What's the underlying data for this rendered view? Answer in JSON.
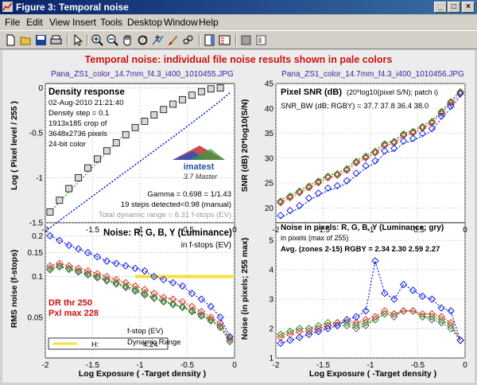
{
  "window": {
    "title": "Figure 3: Temporal noise"
  },
  "menu": [
    "File",
    "Edit",
    "View",
    "Insert",
    "Tools",
    "Desktop",
    "Window",
    "Help"
  ],
  "toolbar_icons": [
    "new-file-icon",
    "open-file-icon",
    "save-icon",
    "print-icon",
    "select-arrow-icon",
    "zoom-in-icon",
    "zoom-out-icon",
    "pan-hand-icon",
    "rotate-3d-icon",
    "data-cursor-icon",
    "brush-icon",
    "link-icon",
    "colorbar-icon",
    "legend-icon",
    "hide-plot-tools-icon",
    "show-plot-tools-icon"
  ],
  "figure": {
    "suptitle": "Temporal noise:  individual file noise results shown in pale colors",
    "left_filename": "Pana_ZS1_color_14.7mm_f4.3_i400_1010455.JPG",
    "right_filename": "Pana_ZS1_color_14.7mm_f4.3_i400_1010456.JPG",
    "xlabel": "Log Exposure ( -Target density )",
    "colors": {
      "R": "#e03030",
      "G": "#20a020",
      "B": "#1020e0",
      "Y": "#606060"
    }
  },
  "panel_tl": {
    "title": "Density response",
    "info": [
      "02-Aug-2010 21:21:40",
      "Density step = 0.1",
      "1913x185 crop of",
      "3648x2736 pixels",
      "24-bit color"
    ],
    "logo_text": "imatest",
    "logo_sub": "3.7  Master",
    "gamma": "Gamma = 0.698 = 1/1.43",
    "steps": "19 steps detected<0.98 (manual)",
    "dynrange": "Total dynamic range = 6.31 f-stops (EV)",
    "ylabel": "Log ( Pixel level / 255 )",
    "yticks": [
      "-1.5",
      "-1",
      "-0.5",
      "0"
    ],
    "xticks": [
      "-2",
      "-1.5",
      "-1",
      "-0.5",
      "0"
    ]
  },
  "panel_tr": {
    "title": "Pixel SNR (dB)",
    "title_note": "(20*log10(pixel S/N); patch i)",
    "snr_bw": "SNR_BW (dB; RGBY) = 37.7 37.8 36.4 38.0",
    "ylabel": "SNR (dB) 20*log10(S/N)",
    "yticks": [
      "20",
      "25",
      "30",
      "35",
      "40",
      "45"
    ],
    "xticks": [
      "-2",
      "-1.5",
      "-1",
      "-0.5",
      "0"
    ]
  },
  "panel_bl": {
    "title": "Noise: R, G, B, Y (Luminance)",
    "subtitle": "in f-stops (EV)",
    "dr_thr": "DR thr 250",
    "pxl_max": "Pxl max 228",
    "ylabel": "RMS noise (f-stops)",
    "legend_h": "H:",
    "legend_val": "4.24",
    "legend_fstop": "f-stop (EV)",
    "legend_dr": "Dynamic Range",
    "yticks": [
      "0.2",
      "0.15",
      "0.1",
      "0.05"
    ],
    "xticks": [
      "-2",
      "-1.5",
      "-1",
      "-0.5",
      "0"
    ]
  },
  "panel_br": {
    "title": "Noise in pixels: R, G, B, Y (Luminance; gry)",
    "subtitle": "in pixels (max of 255)",
    "avg": "Avg. (zones 2-15) RGBY = 2.34  2.30  2.59  2.27",
    "ylabel": "Noise (in pixels; 255 max)",
    "yticks": [
      "1",
      "2",
      "3",
      "4",
      "5"
    ],
    "xticks": [
      "-2",
      "-1.5",
      "-1",
      "-0.5",
      "0"
    ]
  },
  "chart_data": [
    {
      "type": "scatter",
      "title": "Density response",
      "xlabel": "Log Exposure ( -Target density )",
      "ylabel": "Log ( Pixel level / 255 )",
      "xlim": [
        -2,
        0
      ],
      "ylim": [
        -1.5,
        0.05
      ],
      "series": [
        {
          "name": "Y",
          "x": [
            -1.95,
            -1.85,
            -1.75,
            -1.65,
            -1.55,
            -1.45,
            -1.35,
            -1.25,
            -1.15,
            -1.05,
            -0.95,
            -0.85,
            -0.75,
            -0.65,
            -0.55,
            -0.45,
            -0.35,
            -0.25,
            -0.15
          ],
          "values": [
            -1.38,
            -1.25,
            -1.12,
            -1.0,
            -0.89,
            -0.79,
            -0.7,
            -0.61,
            -0.52,
            -0.44,
            -0.37,
            -0.3,
            -0.24,
            -0.18,
            -0.13,
            -0.08,
            -0.04,
            -0.01,
            0.0
          ]
        }
      ]
    },
    {
      "type": "line",
      "title": "Pixel SNR (dB)",
      "xlabel": "Log Exposure ( -Target density )",
      "ylabel": "SNR (dB) 20*log10(S/N)",
      "xlim": [
        -2,
        0
      ],
      "ylim": [
        17,
        45
      ],
      "x": [
        -1.95,
        -1.85,
        -1.75,
        -1.65,
        -1.55,
        -1.45,
        -1.35,
        -1.25,
        -1.15,
        -1.05,
        -0.95,
        -0.85,
        -0.75,
        -0.65,
        -0.55,
        -0.45,
        -0.35,
        -0.25,
        -0.15,
        -0.05
      ],
      "series": [
        {
          "name": "R",
          "values": [
            21,
            22,
            23,
            24,
            25,
            26,
            26.5,
            27.5,
            29,
            30,
            31,
            32.5,
            33,
            34.5,
            35,
            36,
            37,
            39,
            41,
            43
          ]
        },
        {
          "name": "G",
          "values": [
            21.5,
            22.5,
            23.5,
            24.5,
            25.5,
            26.5,
            27,
            28,
            29.5,
            30.5,
            31.5,
            33,
            33.5,
            35,
            35.5,
            36.5,
            37.5,
            39.5,
            41.5,
            43.5
          ]
        },
        {
          "name": "B",
          "values": [
            18,
            19,
            20,
            21.5,
            22.5,
            23.5,
            24,
            25,
            26.5,
            28,
            29,
            31,
            31.5,
            33,
            33.5,
            34.5,
            35.5,
            38,
            40,
            42.5
          ]
        },
        {
          "name": "Y",
          "values": [
            21.5,
            22.5,
            23.5,
            24.5,
            25.5,
            26.5,
            27,
            28,
            29.5,
            30.5,
            31.5,
            33,
            33.5,
            35,
            35.5,
            36.5,
            37.5,
            39.5,
            41.5,
            43.5
          ]
        }
      ]
    },
    {
      "type": "line",
      "title": "Noise: R, G, B, Y (Luminance)",
      "xlabel": "Log Exposure ( -Target density )",
      "ylabel": "RMS noise (f-stops)",
      "xlim": [
        -2,
        0
      ],
      "ylog": true,
      "ylim": [
        0.025,
        0.25
      ],
      "x": [
        -1.95,
        -1.85,
        -1.75,
        -1.65,
        -1.55,
        -1.45,
        -1.35,
        -1.25,
        -1.15,
        -1.05,
        -0.95,
        -0.85,
        -0.75,
        -0.65,
        -0.55,
        -0.45,
        -0.35,
        -0.25,
        -0.15,
        -0.05
      ],
      "series": [
        {
          "name": "R",
          "values": [
            0.12,
            0.125,
            0.12,
            0.115,
            0.11,
            0.105,
            0.1,
            0.095,
            0.09,
            0.085,
            0.08,
            0.075,
            0.07,
            0.068,
            0.065,
            0.06,
            0.055,
            0.05,
            0.045,
            0.035
          ]
        },
        {
          "name": "G",
          "values": [
            0.115,
            0.12,
            0.115,
            0.11,
            0.105,
            0.1,
            0.095,
            0.09,
            0.085,
            0.08,
            0.075,
            0.07,
            0.066,
            0.063,
            0.06,
            0.056,
            0.052,
            0.048,
            0.043,
            0.034
          ]
        },
        {
          "name": "B",
          "values": [
            0.2,
            0.185,
            0.17,
            0.16,
            0.15,
            0.14,
            0.13,
            0.125,
            0.12,
            0.115,
            0.11,
            0.1,
            0.095,
            0.09,
            0.085,
            0.075,
            0.068,
            0.06,
            0.05,
            0.036
          ]
        },
        {
          "name": "Y",
          "values": [
            0.112,
            0.118,
            0.113,
            0.108,
            0.103,
            0.098,
            0.093,
            0.088,
            0.083,
            0.078,
            0.073,
            0.069,
            0.065,
            0.062,
            0.059,
            0.055,
            0.051,
            0.047,
            0.042,
            0.033
          ]
        }
      ],
      "hline": {
        "y": 0.1,
        "x_from": -1.05,
        "x_to": 0,
        "color": "#f5e03a"
      }
    },
    {
      "type": "line",
      "title": "Noise in pixels: R, G, B, Y (Luminance; gry)",
      "xlabel": "Log Exposure ( -Target density )",
      "ylabel": "Noise (in pixels; 255 max)",
      "xlim": [
        -2,
        0
      ],
      "ylim": [
        1,
        5.6
      ],
      "x": [
        -1.95,
        -1.85,
        -1.75,
        -1.65,
        -1.55,
        -1.45,
        -1.35,
        -1.25,
        -1.15,
        -1.05,
        -0.95,
        -0.85,
        -0.75,
        -0.65,
        -0.55,
        -0.45,
        -0.35,
        -0.25,
        -0.15,
        -0.05
      ],
      "series": [
        {
          "name": "R",
          "values": [
            1.7,
            1.8,
            1.9,
            1.9,
            2.0,
            2.1,
            2.2,
            2.3,
            2.2,
            2.3,
            2.4,
            2.6,
            2.5,
            2.6,
            2.6,
            2.5,
            2.5,
            2.4,
            2.2,
            1.6
          ]
        },
        {
          "name": "G",
          "values": [
            1.8,
            1.9,
            2.0,
            2.0,
            2.1,
            2.2,
            2.2,
            2.2,
            2.1,
            2.2,
            2.3,
            2.5,
            2.5,
            2.6,
            2.6,
            2.4,
            2.4,
            2.3,
            2.1,
            1.6
          ]
        },
        {
          "name": "B",
          "values": [
            1.5,
            1.6,
            1.7,
            1.8,
            1.9,
            2.0,
            2.1,
            2.3,
            2.4,
            2.6,
            4.3,
            3.2,
            3.0,
            3.5,
            3.3,
            3.1,
            3.0,
            2.7,
            2.6,
            1.6
          ]
        },
        {
          "name": "Y",
          "values": [
            1.8,
            1.9,
            2.0,
            2.0,
            2.0,
            2.1,
            2.1,
            2.1,
            2.0,
            2.1,
            2.3,
            2.5,
            2.4,
            2.6,
            2.6,
            2.4,
            2.3,
            2.2,
            2.0,
            1.6
          ]
        }
      ]
    }
  ]
}
